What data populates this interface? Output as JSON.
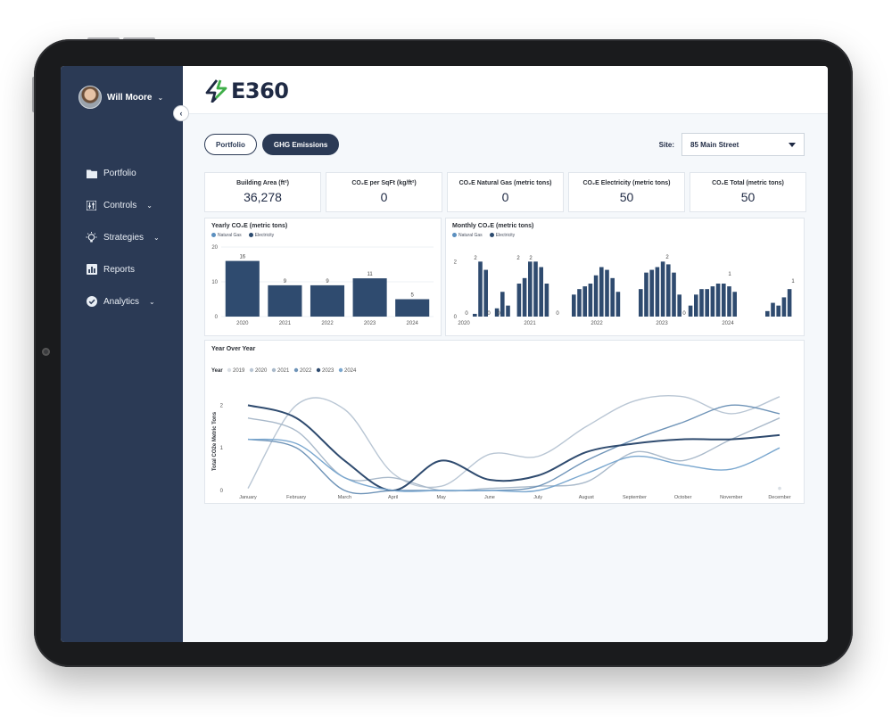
{
  "user": {
    "name": "Will Moore"
  },
  "nav": [
    {
      "label": "Portfolio",
      "icon": "folder-icon",
      "chevron": false
    },
    {
      "label": "Controls",
      "icon": "sliders-icon",
      "chevron": true
    },
    {
      "label": "Strategies",
      "icon": "lightbulb-icon",
      "chevron": true
    },
    {
      "label": "Reports",
      "icon": "bar-chart-icon",
      "chevron": false
    },
    {
      "label": "Analytics",
      "icon": "check-circle-icon",
      "chevron": true
    }
  ],
  "logo": {
    "text": "E360"
  },
  "tabs": [
    {
      "label": "Portfolio",
      "active": false
    },
    {
      "label": "GHG Emissions",
      "active": true
    }
  ],
  "site": {
    "label": "Site:",
    "value": "85 Main Street"
  },
  "kpis": [
    {
      "label": "Building Area (ft²)",
      "value": "36,278"
    },
    {
      "label": "CO₂E per SqFt (kg/ft²)",
      "value": "0"
    },
    {
      "label": "CO₂E Natural Gas (metric tons)",
      "value": "0"
    },
    {
      "label": "CO₂E Electricity (metric tons)",
      "value": "50"
    },
    {
      "label": "CO₂E Total (metric tons)",
      "value": "50"
    }
  ],
  "colors": {
    "natural_gas": "#5b8fbf",
    "electricity": "#2b4a6e",
    "bar": "#2f4b6f",
    "sidebar": "#2b3a55"
  },
  "chart_data": [
    {
      "type": "bar",
      "title": "Yearly CO₂E (metric tons)",
      "legend": [
        "Natural Gas",
        "Electricity"
      ],
      "categories": [
        "2020",
        "2021",
        "2022",
        "2023",
        "2024"
      ],
      "series": [
        {
          "name": "Natural Gas",
          "values": [
            0,
            0,
            0,
            0,
            0
          ]
        },
        {
          "name": "Electricity",
          "values": [
            16,
            9,
            9,
            11,
            5
          ]
        }
      ],
      "data_labels": [
        "16",
        "9",
        "9",
        "11",
        "5"
      ],
      "yticks": [
        "20",
        "10",
        "0"
      ],
      "ylim": [
        0,
        20
      ]
    },
    {
      "type": "bar",
      "title": "Monthly CO₂E (metric tons)",
      "legend": [
        "Natural Gas",
        "Electricity"
      ],
      "xticks": [
        "2020",
        "2021",
        "2022",
        "2023",
        "2024"
      ],
      "yticks": [
        "2",
        "0"
      ],
      "ylim": [
        0,
        2.4
      ],
      "groups": [
        {
          "values": [
            0.1,
            2.0,
            1.7,
            0.0,
            0.3,
            0.9,
            0.4,
            0.0,
            1.2,
            1.4,
            2.0,
            2.0,
            1.8,
            1.2,
            0.0
          ]
        },
        {
          "values": [
            0.8,
            1.0,
            1.1,
            1.2,
            1.5,
            1.8,
            1.7,
            1.4,
            0.9
          ]
        },
        {
          "values": [
            1.0,
            1.6,
            1.7,
            1.8,
            2.0,
            1.9,
            1.6,
            0.8,
            0.0,
            0.4,
            0.8,
            1.0,
            1.0,
            1.1,
            1.2,
            1.2,
            1.1,
            0.9
          ]
        },
        {
          "values": [
            0.2,
            0.5,
            0.4,
            0.7,
            1.0
          ]
        }
      ],
      "data_labels": [
        "0",
        "2",
        "2",
        "2",
        "0",
        "0",
        "0",
        "2",
        "0",
        "1",
        "1"
      ]
    },
    {
      "type": "line",
      "title": "Year Over Year",
      "legend_title": "Year",
      "ylabel": "Total CO2e Metric Tons",
      "x": [
        "January",
        "February",
        "March",
        "April",
        "May",
        "June",
        "July",
        "August",
        "September",
        "October",
        "November",
        "December"
      ],
      "yticks": [
        "2",
        "1",
        "0"
      ],
      "ylim": [
        0,
        2.3
      ],
      "series": [
        {
          "name": "2019",
          "color": "#d9dee4",
          "values": [
            null,
            null,
            null,
            null,
            null,
            null,
            null,
            null,
            null,
            null,
            null,
            0.05
          ]
        },
        {
          "name": "2020",
          "color": "#b9c6d4",
          "values": [
            0.05,
            2.0,
            1.9,
            0.4,
            0.1,
            0.85,
            0.8,
            1.5,
            2.1,
            2.2,
            1.8,
            2.2
          ]
        },
        {
          "name": "2021",
          "color": "#a9b9ca",
          "values": [
            1.7,
            1.4,
            0.3,
            0.3,
            0.0,
            0.05,
            0.1,
            0.2,
            0.9,
            0.7,
            1.2,
            1.7
          ]
        },
        {
          "name": "2022",
          "color": "#6f94b8",
          "values": [
            1.2,
            1.0,
            0.0,
            0.0,
            0.0,
            0.0,
            0.1,
            0.7,
            1.2,
            1.6,
            2.0,
            1.8
          ]
        },
        {
          "name": "2023",
          "color": "#2f4b6f",
          "values": [
            2.0,
            1.7,
            0.7,
            0.0,
            0.7,
            0.25,
            0.35,
            0.9,
            1.1,
            1.2,
            1.2,
            1.3
          ]
        },
        {
          "name": "2024",
          "color": "#7aa7cf",
          "values": [
            1.2,
            1.1,
            0.3,
            0.0,
            0.0,
            0.0,
            0.0,
            0.4,
            0.8,
            0.6,
            0.5,
            1.0
          ]
        }
      ]
    }
  ]
}
